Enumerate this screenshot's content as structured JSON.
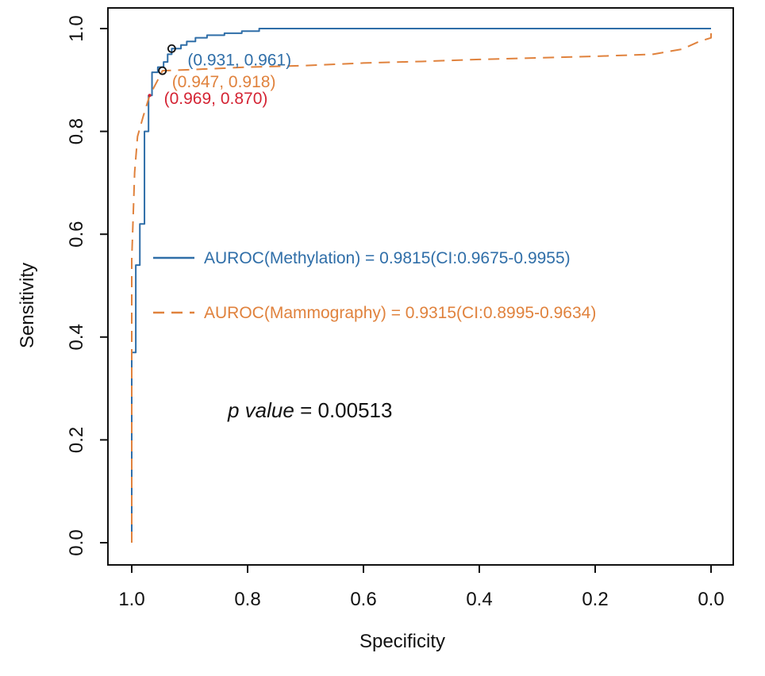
{
  "chart_data": {
    "type": "line",
    "xlabel": "Specificity",
    "ylabel": "Sensitivity",
    "xlim": [
      1.0,
      0.0
    ],
    "ylim": [
      0.0,
      1.0
    ],
    "x_reversed": true,
    "xticks": [
      "1.0",
      "0.8",
      "0.6",
      "0.4",
      "0.2",
      "0.0"
    ],
    "yticks": [
      "0.0",
      "0.2",
      "0.4",
      "0.6",
      "0.8",
      "1.0"
    ],
    "grid": false,
    "legend_placement": "center-left",
    "colors": {
      "methylation": "#2f6ea8",
      "mammography": "#e0823d",
      "highlight": "#d42434"
    },
    "series": [
      {
        "name": "AUROC(Methylation) = 0.9815(CI:0.9675-0.9955)",
        "style": "solid",
        "points": [
          [
            1.0,
            0.0
          ],
          [
            1.0,
            0.37
          ],
          [
            0.993,
            0.37
          ],
          [
            0.993,
            0.54
          ],
          [
            0.986,
            0.54
          ],
          [
            0.986,
            0.62
          ],
          [
            0.978,
            0.62
          ],
          [
            0.978,
            0.8
          ],
          [
            0.971,
            0.8
          ],
          [
            0.971,
            0.87
          ],
          [
            0.965,
            0.87
          ],
          [
            0.965,
            0.915
          ],
          [
            0.955,
            0.915
          ],
          [
            0.955,
            0.925
          ],
          [
            0.945,
            0.925
          ],
          [
            0.945,
            0.935
          ],
          [
            0.938,
            0.935
          ],
          [
            0.938,
            0.95
          ],
          [
            0.931,
            0.95
          ],
          [
            0.931,
            0.961
          ],
          [
            0.915,
            0.961
          ],
          [
            0.915,
            0.968
          ],
          [
            0.905,
            0.968
          ],
          [
            0.905,
            0.975
          ],
          [
            0.89,
            0.975
          ],
          [
            0.89,
            0.982
          ],
          [
            0.87,
            0.982
          ],
          [
            0.87,
            0.987
          ],
          [
            0.84,
            0.987
          ],
          [
            0.84,
            0.991
          ],
          [
            0.81,
            0.991
          ],
          [
            0.81,
            0.995
          ],
          [
            0.78,
            0.995
          ],
          [
            0.78,
            1.0
          ],
          [
            0.0,
            1.0
          ]
        ]
      },
      {
        "name": "AUROC(Mammography) = 0.9315(CI:0.8995-0.9634)",
        "style": "dashed",
        "points": [
          [
            1.0,
            0.0
          ],
          [
            1.0,
            0.55
          ],
          [
            0.995,
            0.72
          ],
          [
            0.99,
            0.79
          ],
          [
            0.98,
            0.83
          ],
          [
            0.969,
            0.87
          ],
          [
            0.955,
            0.9
          ],
          [
            0.947,
            0.918
          ],
          [
            0.9,
            0.92
          ],
          [
            0.8,
            0.925
          ],
          [
            0.7,
            0.928
          ],
          [
            0.6,
            0.933
          ],
          [
            0.5,
            0.936
          ],
          [
            0.4,
            0.94
          ],
          [
            0.3,
            0.943
          ],
          [
            0.2,
            0.946
          ],
          [
            0.1,
            0.95
          ],
          [
            0.05,
            0.96
          ],
          [
            0.02,
            0.975
          ],
          [
            0.0,
            0.982
          ],
          [
            0.0,
            1.0
          ]
        ]
      }
    ],
    "annotations": [
      {
        "text": "(0.931, 0.961)",
        "x": 0.931,
        "y": 0.961,
        "color": "#2f6ea8",
        "marker": "circle"
      },
      {
        "text": "(0.947, 0.918)",
        "x": 0.947,
        "y": 0.918,
        "color": "#e0823d",
        "marker": "circle"
      },
      {
        "text": "(0.969, 0.870)",
        "x": 0.969,
        "y": 0.87,
        "color": "#d42434",
        "marker": "dot"
      }
    ],
    "p_value": {
      "label": "p value",
      "equals": " = ",
      "value": "0.00513"
    }
  }
}
